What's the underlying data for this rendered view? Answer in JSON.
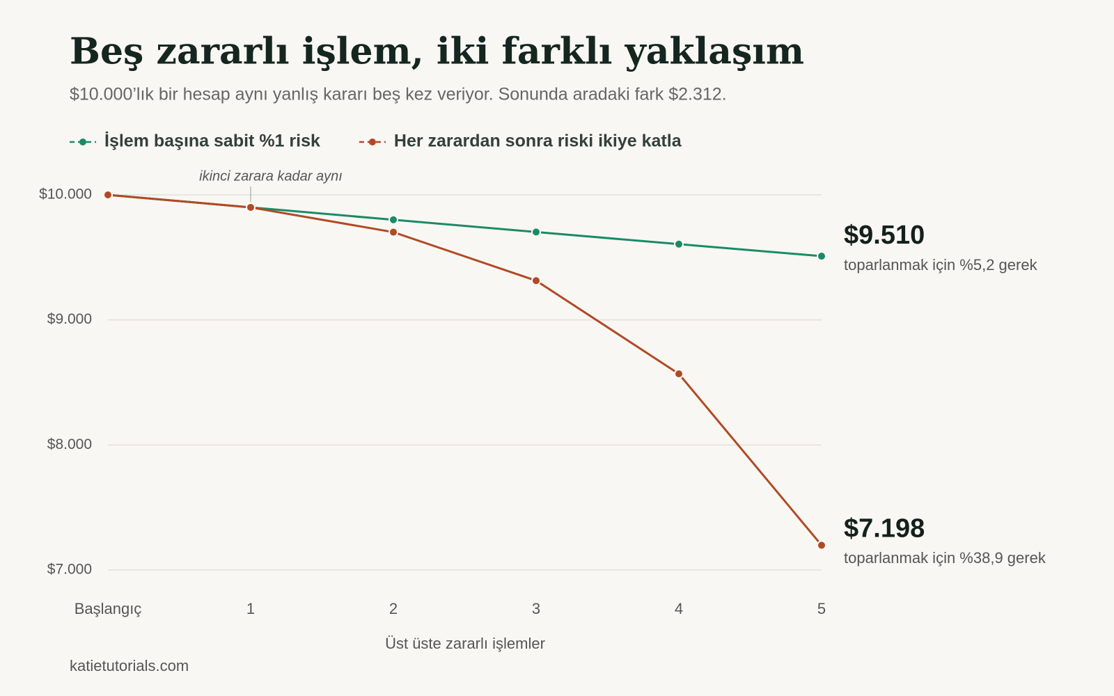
{
  "chart_data": {
    "type": "line",
    "title": "Beş zararlı işlem, iki farklı yaklaşım",
    "subtitle": "$10.000’lık bir hesap aynı yanlış kararı beş kez veriyor. Sonunda aradaki fark $2.312.",
    "x_label": "Üst üste zararlı işlemler",
    "source": "katietutorials.com",
    "annotation": {
      "text": "ikinci zarara kadar aynı",
      "category_index": 1
    },
    "categories": [
      "Başlangıç",
      "1",
      "2",
      "3",
      "4",
      "5"
    ],
    "series": [
      {
        "name": "İşlem başına sabit %1 risk",
        "color": "#1a8a68",
        "values": [
          10000,
          9900,
          9801,
          9703,
          9606,
          9510
        ],
        "end_label": "$9.510",
        "end_note": "toparlanmak için %5,2 gerek"
      },
      {
        "name": "Her zarardan sonra riski ikiye katla",
        "color": "#b04a25",
        "values": [
          10000,
          9900,
          9702,
          9314,
          8569,
          7198
        ],
        "end_label": "$7.198",
        "end_note": "toparlanmak için %38,9 gerek"
      }
    ],
    "ylim": [
      7000,
      10000
    ],
    "yticks": [
      {
        "value": 7000,
        "label": "$7.000"
      },
      {
        "value": 8000,
        "label": "$8.000"
      },
      {
        "value": 9000,
        "label": "$9.000"
      },
      {
        "value": 10000,
        "label": "$10.000"
      }
    ],
    "grid": true
  }
}
